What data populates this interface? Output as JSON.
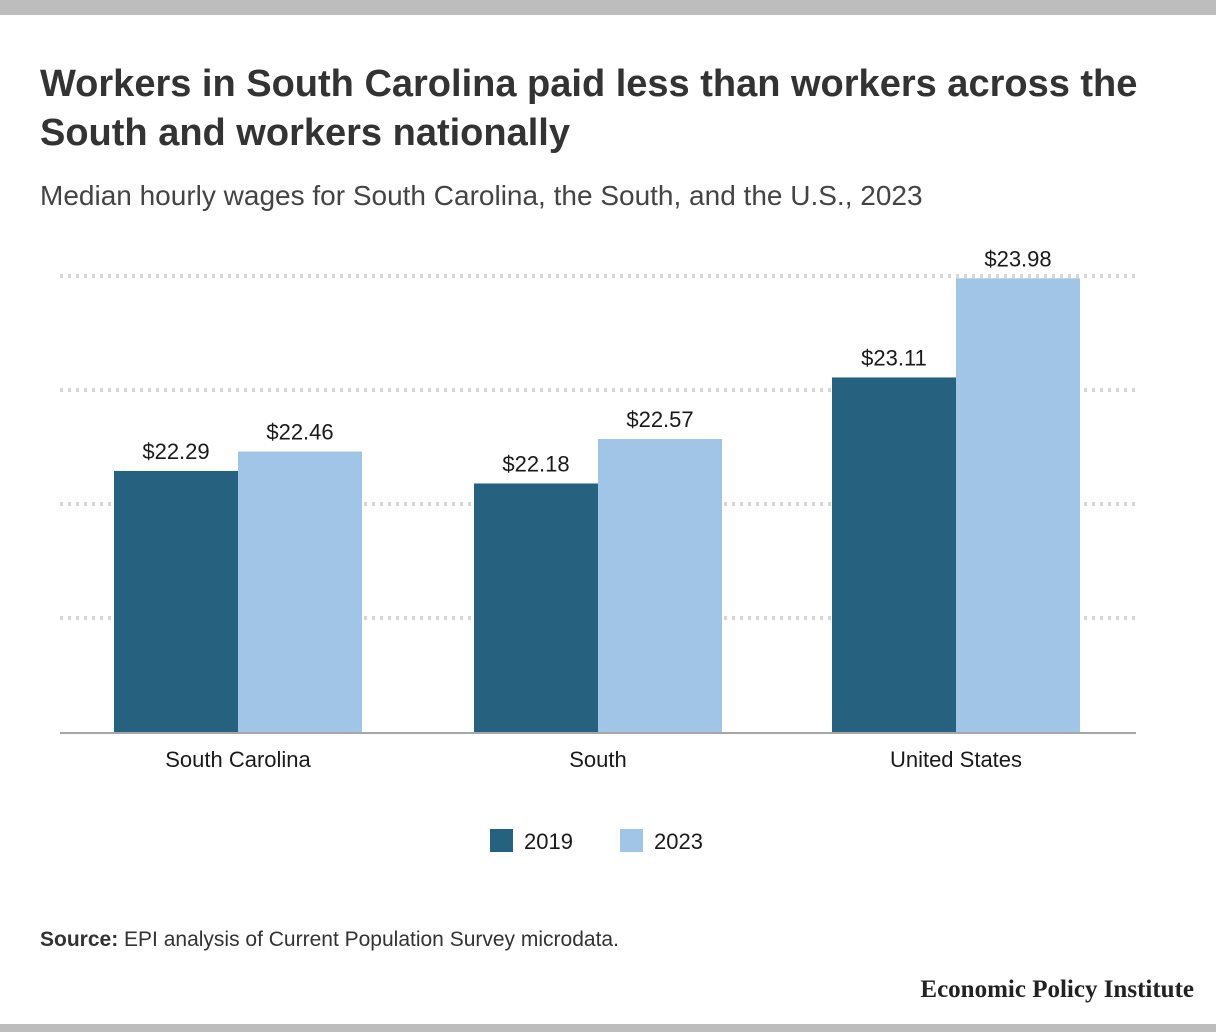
{
  "title": "Workers in South Carolina paid less than workers across the South and workers nationally",
  "subtitle": "Median hourly wages for South Carolina, the South, and the U.S., 2023",
  "source": {
    "label": "Source:",
    "text": " EPI analysis of Current Population Survey microdata."
  },
  "brand": "Economic Policy Institute",
  "colors": {
    "series_2019": "#26617f",
    "series_2023": "#a0c5e7",
    "grid": "#d7d7d7",
    "axis": "#a6a6a6"
  },
  "chart_data": {
    "type": "bar",
    "categories": [
      "South Carolina",
      "South",
      "United States"
    ],
    "series": [
      {
        "name": "2019",
        "values": [
          22.29,
          22.18,
          23.11
        ],
        "labels": [
          "$22.29",
          "$22.18",
          "$23.11"
        ]
      },
      {
        "name": "2023",
        "values": [
          22.46,
          22.57,
          23.98
        ],
        "labels": [
          "$22.46",
          "$22.57",
          "$23.98"
        ]
      }
    ],
    "title": "",
    "xlabel": "",
    "ylabel": "",
    "ylim": [
      20.0,
      24.0
    ],
    "y_axis_labels_shown": false,
    "grid": true,
    "grid_style": "dotted horizontal",
    "legend_position": "bottom-center"
  }
}
